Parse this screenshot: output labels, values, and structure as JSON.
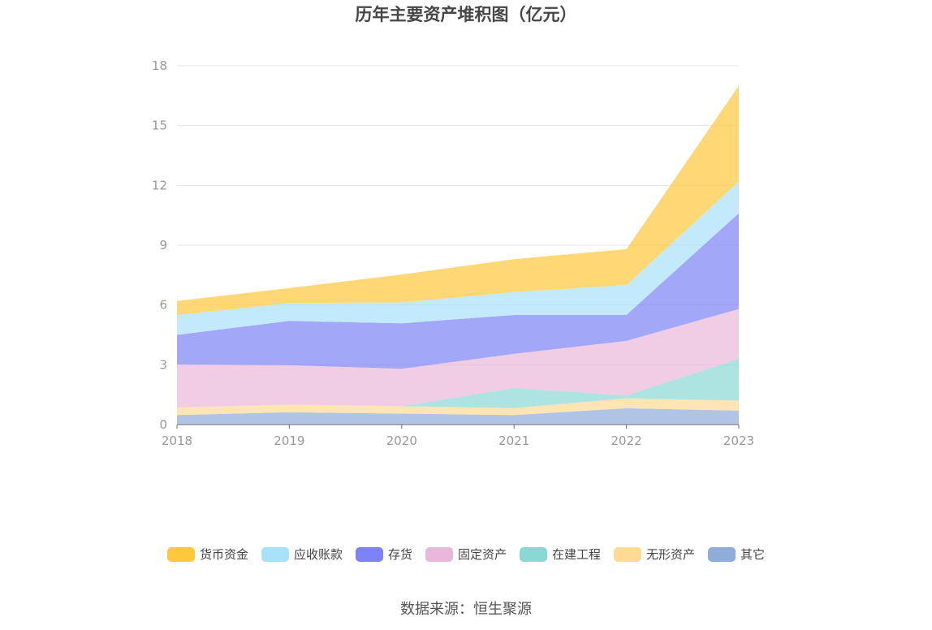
{
  "chart_data": {
    "type": "area",
    "stacked": true,
    "title": "历年主要资产堆积图（亿元）",
    "x": [
      "2018",
      "2019",
      "2020",
      "2021",
      "2022",
      "2023"
    ],
    "ylim": [
      0,
      18
    ],
    "yticks": [
      "0",
      "3",
      "6",
      "9",
      "12",
      "15",
      "18"
    ],
    "grid": true,
    "legend_position": "bottom",
    "series": [
      {
        "name": "其它",
        "color": "#8fadda",
        "values": [
          0.48,
          0.62,
          0.55,
          0.48,
          0.82,
          0.7
        ]
      },
      {
        "name": "无形资产",
        "color": "#ffda94",
        "values": [
          0.38,
          0.38,
          0.37,
          0.35,
          0.5,
          0.5
        ]
      },
      {
        "name": "在建工程",
        "color": "#8ad8d6",
        "values": [
          0.0,
          0.0,
          0.0,
          1.0,
          0.14,
          2.1
        ]
      },
      {
        "name": "固定资产",
        "color": "#e9b7da",
        "values": [
          2.16,
          1.98,
          1.88,
          1.72,
          2.74,
          2.5
        ]
      },
      {
        "name": "存货",
        "color": "#7c82f4",
        "values": [
          1.48,
          2.22,
          2.28,
          1.95,
          1.3,
          4.8
        ]
      },
      {
        "name": "应收账款",
        "color": "#a9e0fb",
        "values": [
          1.0,
          0.9,
          1.05,
          1.15,
          1.5,
          1.6
        ]
      },
      {
        "name": "货币资金",
        "color": "#ffc73c",
        "values": [
          0.7,
          0.75,
          1.4,
          1.65,
          1.8,
          4.8
        ]
      }
    ]
  },
  "legend_order": [
    "货币资金",
    "应收账款",
    "存货",
    "固定资产",
    "在建工程",
    "无形资产",
    "其它"
  ],
  "source_text": "数据来源：恒生聚源"
}
